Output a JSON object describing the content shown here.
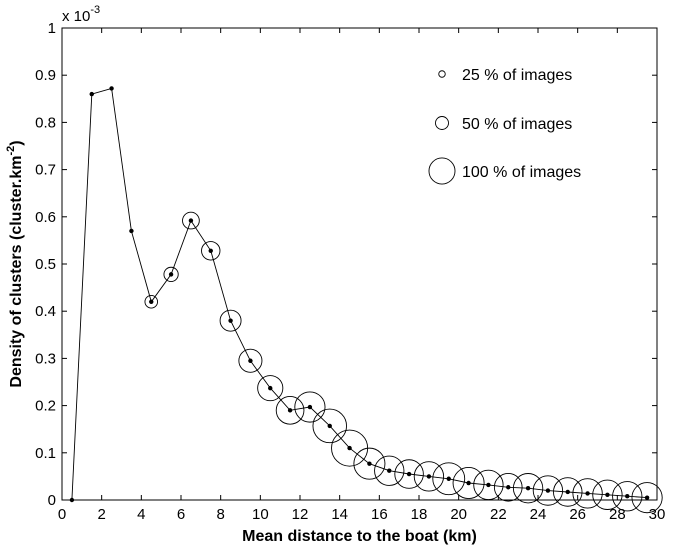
{
  "chart_data": {
    "type": "line",
    "xlabel": "Mean distance to the boat (km)",
    "ylabel": "Density of clusters (cluster.km",
    "ylabel_sup": "-2",
    "ylabel_close": ")",
    "y_multiplier_base": "x 10",
    "y_multiplier_exp": "-3",
    "xlim": [
      0,
      30
    ],
    "ylim": [
      0,
      1
    ],
    "x_ticks": [
      0,
      2,
      4,
      6,
      8,
      10,
      12,
      14,
      16,
      18,
      20,
      22,
      24,
      26,
      28,
      30
    ],
    "y_ticks": [
      0,
      0.1,
      0.2,
      0.3,
      0.4,
      0.5,
      0.6,
      0.7,
      0.8,
      0.9,
      1
    ],
    "y_tick_labels": [
      "0",
      "0.1",
      "0.2",
      "0.3",
      "0.4",
      "0.5",
      "0.6",
      "0.7",
      "0.8",
      "0.9",
      "1"
    ],
    "grid": false,
    "legend_position": "top-right",
    "legend": [
      {
        "label": "25 %  of images",
        "fraction": 0.25
      },
      {
        "label": "50 %  of images",
        "fraction": 0.5
      },
      {
        "label": "100 %  of images",
        "fraction": 1.0
      }
    ],
    "series": [
      {
        "x": [
          0.5,
          1.5,
          2.5,
          3.5,
          4.5,
          5.5,
          6.5,
          7.5,
          8.5,
          9.5,
          10.5,
          11.5,
          12.5,
          13.5,
          14.5,
          15.5,
          16.5,
          17.5,
          18.5,
          19.5,
          20.5,
          21.5,
          22.5,
          23.5,
          24.5,
          25.5,
          26.5,
          27.5,
          28.5,
          29.5
        ],
        "y": [
          0,
          0.86,
          0.872,
          0.57,
          0.42,
          0.478,
          0.592,
          0.528,
          0.38,
          0.295,
          0.237,
          0.19,
          0.197,
          0.157,
          0.11,
          0.077,
          0.062,
          0.055,
          0.05,
          0.045,
          0.036,
          0.032,
          0.027,
          0.025,
          0.02,
          0.017,
          0.014,
          0.011,
          0.008,
          0.005
        ],
        "image_fraction": [
          0,
          0,
          0,
          0,
          0.3,
          0.34,
          0.4,
          0.44,
          0.5,
          0.55,
          0.6,
          0.66,
          0.72,
          0.8,
          0.86,
          0.74,
          0.7,
          0.68,
          0.7,
          0.76,
          0.74,
          0.7,
          0.66,
          0.7,
          0.7,
          0.68,
          0.7,
          0.7,
          0.7,
          0.72
        ]
      }
    ]
  }
}
